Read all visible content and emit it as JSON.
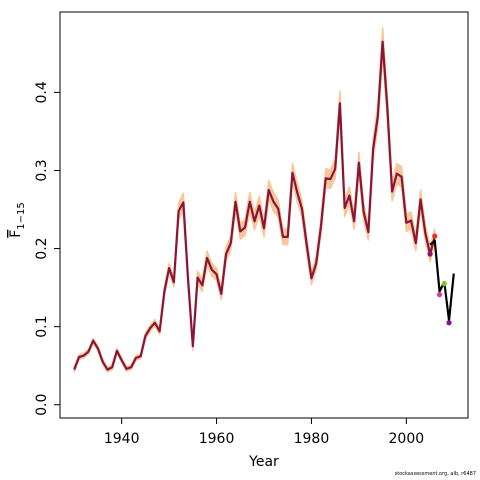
{
  "chart_data": {
    "type": "line",
    "xlabel": "Year",
    "ylabel_main": "F",
    "ylabel_sub": "1−15",
    "xlim": [
      1927,
      2013
    ],
    "ylim": [
      -0.017,
      0.503
    ],
    "x_ticks": [
      1940,
      1960,
      1980,
      2000
    ],
    "y_ticks": [
      0.0,
      0.1,
      0.2,
      0.3,
      0.4
    ],
    "y_tick_labels": [
      "0.0",
      "0.1",
      "0.2",
      "0.3",
      "0.4"
    ],
    "grid": false,
    "legend": "none",
    "colors": {
      "main_line": "#8B1538",
      "band": "#F5C79A",
      "latest": "#000000",
      "retro_red": "#E8352C",
      "retro_purple": "#8B1A6B",
      "retro_pink": "#E8359A",
      "retro_green": "#7ACC1A",
      "retro_violet": "#7A1A8C"
    },
    "years": [
      1930,
      1931,
      1932,
      1933,
      1934,
      1935,
      1936,
      1937,
      1938,
      1939,
      1940,
      1941,
      1942,
      1943,
      1944,
      1945,
      1946,
      1947,
      1948,
      1949,
      1950,
      1951,
      1952,
      1953,
      1954,
      1955,
      1956,
      1957,
      1958,
      1959,
      1960,
      1961,
      1962,
      1963,
      1964,
      1965,
      1966,
      1967,
      1968,
      1969,
      1970,
      1971,
      1972,
      1973,
      1974,
      1975,
      1976,
      1977,
      1978,
      1979,
      1980,
      1981,
      1982,
      1983,
      1984,
      1985,
      1986,
      1987,
      1988,
      1989,
      1990,
      1991,
      1992,
      1993,
      1994,
      1995,
      1996,
      1997,
      1998,
      1999,
      2000,
      2001,
      2002,
      2003,
      2004,
      2005,
      2006
    ],
    "values": [
      0.045,
      0.061,
      0.063,
      0.068,
      0.082,
      0.072,
      0.055,
      0.045,
      0.048,
      0.069,
      0.057,
      0.046,
      0.048,
      0.06,
      0.062,
      0.088,
      0.098,
      0.105,
      0.094,
      0.145,
      0.175,
      0.157,
      0.248,
      0.259,
      0.16,
      0.075,
      0.163,
      0.153,
      0.188,
      0.173,
      0.167,
      0.142,
      0.193,
      0.207,
      0.26,
      0.222,
      0.227,
      0.26,
      0.235,
      0.255,
      0.226,
      0.275,
      0.26,
      0.251,
      0.215,
      0.215,
      0.297,
      0.272,
      0.251,
      0.205,
      0.162,
      0.181,
      0.228,
      0.29,
      0.289,
      0.302,
      0.386,
      0.252,
      0.268,
      0.235,
      0.31,
      0.247,
      0.221,
      0.327,
      0.37,
      0.465,
      0.38,
      0.273,
      0.296,
      0.292,
      0.233,
      0.236,
      0.207,
      0.263,
      0.22,
      0.193,
      0.215
    ],
    "band_halfwidth": [
      0.003,
      0.003,
      0.003,
      0.003,
      0.003,
      0.003,
      0.003,
      0.003,
      0.003,
      0.003,
      0.003,
      0.003,
      0.003,
      0.003,
      0.003,
      0.004,
      0.004,
      0.004,
      0.004,
      0.006,
      0.006,
      0.006,
      0.01,
      0.012,
      0.008,
      0.005,
      0.008,
      0.008,
      0.009,
      0.008,
      0.008,
      0.007,
      0.009,
      0.009,
      0.012,
      0.01,
      0.01,
      0.012,
      0.011,
      0.012,
      0.011,
      0.012,
      0.012,
      0.011,
      0.01,
      0.01,
      0.012,
      0.012,
      0.011,
      0.01,
      0.008,
      0.008,
      0.01,
      0.012,
      0.012,
      0.012,
      0.016,
      0.011,
      0.011,
      0.01,
      0.013,
      0.011,
      0.01,
      0.013,
      0.014,
      0.018,
      0.015,
      0.012,
      0.013,
      0.013,
      0.011,
      0.011,
      0.01,
      0.012,
      0.01,
      0.01,
      0.01
    ],
    "latest_assessment": {
      "years": [
        2005,
        2006,
        2007,
        2008,
        2009,
        2010
      ],
      "values": [
        0.205,
        0.21,
        0.145,
        0.157,
        0.108,
        0.168
      ]
    },
    "retrospective_points": [
      {
        "x": 2005,
        "y": 0.193,
        "color": "#8B1A6B"
      },
      {
        "x": 2006,
        "y": 0.216,
        "color": "#E8352C"
      },
      {
        "x": 2007,
        "y": 0.141,
        "color": "#E8359A"
      },
      {
        "x": 2008,
        "y": 0.155,
        "color": "#7ACC1A"
      },
      {
        "x": 2009,
        "y": 0.105,
        "color": "#7A1A8C"
      }
    ]
  },
  "credit": "stockassessment.org, alb, r6487"
}
